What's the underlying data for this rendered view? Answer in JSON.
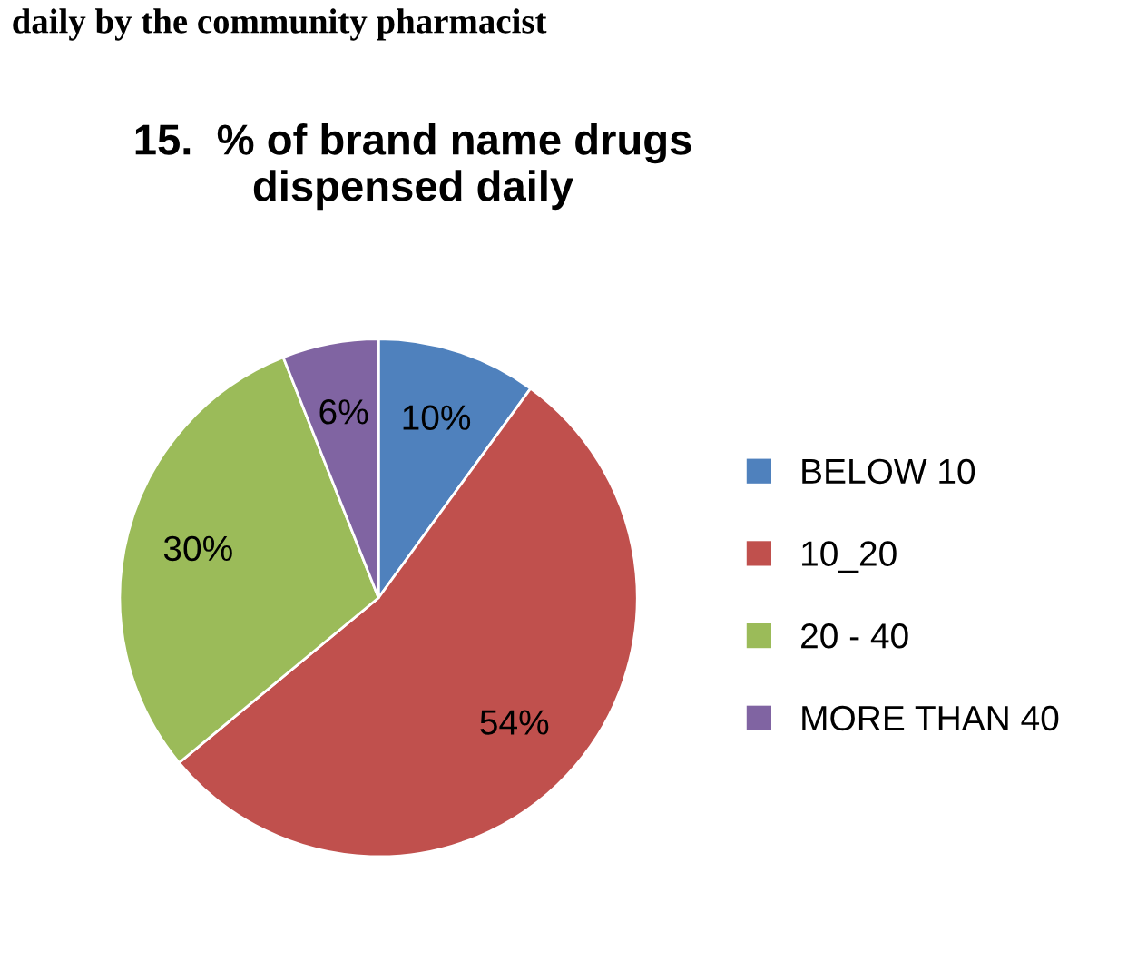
{
  "chart_data": {
    "type": "pie",
    "title": "15.  % of brand name drugs\ndispensed daily",
    "annotations": [
      "daily by the community pharmacist"
    ],
    "categories": [
      "BELOW 10",
      "10_20",
      "20 - 40",
      "MORE THAN 40"
    ],
    "values": [
      10,
      54,
      30,
      6
    ],
    "colors": [
      "#4f81bd",
      "#c0504d",
      "#9bbb59",
      "#8064a2"
    ],
    "value_labels": [
      "10%",
      "54%",
      "30%",
      "6%"
    ],
    "legend": "right"
  }
}
